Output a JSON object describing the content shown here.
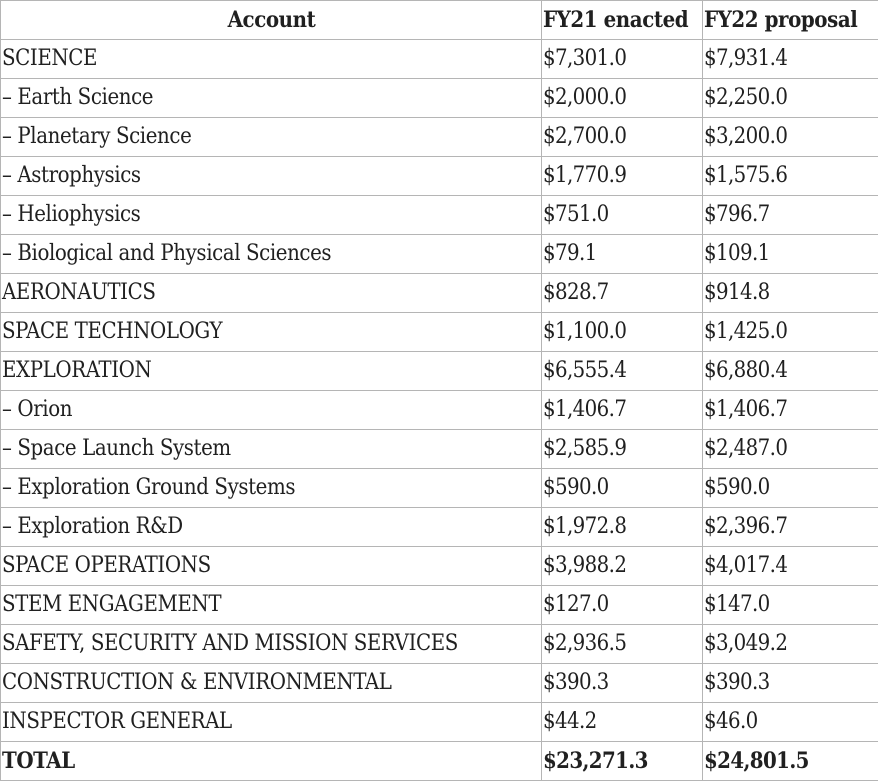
{
  "table": {
    "columns": [
      "Account",
      "FY21 enacted",
      "FY22 proposal"
    ],
    "rows": [
      {
        "account": "SCIENCE",
        "fy21": "$7,301.0",
        "fy22": "$7,931.4"
      },
      {
        "account": "– Earth Science",
        "fy21": "$2,000.0",
        "fy22": "$2,250.0"
      },
      {
        "account": "– Planetary Science",
        "fy21": "$2,700.0",
        "fy22": "$3,200.0"
      },
      {
        "account": "– Astrophysics",
        "fy21": "$1,770.9",
        "fy22": "$1,575.6"
      },
      {
        "account": "– Heliophysics",
        "fy21": "$751.0",
        "fy22": "$796.7"
      },
      {
        "account": "– Biological and Physical Sciences",
        "fy21": "$79.1",
        "fy22": "$109.1"
      },
      {
        "account": "AERONAUTICS",
        "fy21": "$828.7",
        "fy22": "$914.8"
      },
      {
        "account": "SPACE TECHNOLOGY",
        "fy21": "$1,100.0",
        "fy22": "$1,425.0"
      },
      {
        "account": "EXPLORATION",
        "fy21": "$6,555.4",
        "fy22": "$6,880.4"
      },
      {
        "account": "– Orion",
        "fy21": "$1,406.7",
        "fy22": "$1,406.7"
      },
      {
        "account": "– Space Launch System",
        "fy21": "$2,585.9",
        "fy22": "$2,487.0"
      },
      {
        "account": "– Exploration Ground Systems",
        "fy21": "$590.0",
        "fy22": "$590.0"
      },
      {
        "account": "– Exploration R&D",
        "fy21": "$1,972.8",
        "fy22": "$2,396.7"
      },
      {
        "account": "SPACE OPERATIONS",
        "fy21": "$3,988.2",
        "fy22": "$4,017.4"
      },
      {
        "account": "STEM ENGAGEMENT",
        "fy21": "$127.0",
        "fy22": "$147.0"
      },
      {
        "account": "SAFETY, SECURITY AND MISSION SERVICES",
        "fy21": "$2,936.5",
        "fy22": "$3,049.2"
      },
      {
        "account": "CONSTRUCTION & ENVIRONMENTAL",
        "fy21": "$390.3",
        "fy22": "$390.3"
      },
      {
        "account": "INSPECTOR GENERAL",
        "fy21": "$44.2",
        "fy22": "$46.0"
      }
    ],
    "total": {
      "account": "TOTAL",
      "fy21": "$23,271.3",
      "fy22": "$24,801.5"
    }
  }
}
